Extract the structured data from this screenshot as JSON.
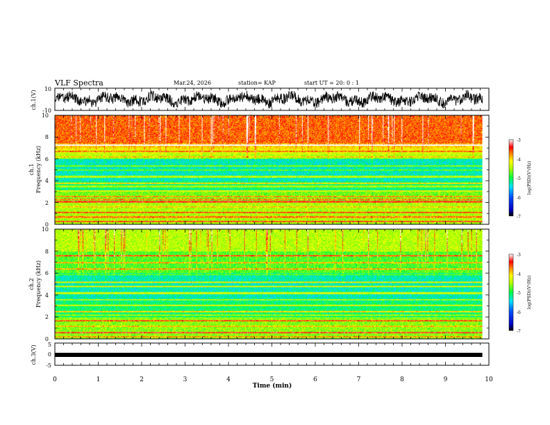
{
  "header": {
    "title": "VLF Spectra",
    "date": "Mar.24, 2026",
    "station": "station= KAP",
    "start_time": "start  UT =   20: 0  : 1"
  },
  "chart_data": [
    {
      "type": "line",
      "panel": "ch1-waveform",
      "ylabel": "ch.1(V)",
      "ylim": [
        -10,
        10
      ],
      "ytick_labels": [
        "10",
        "-10"
      ],
      "x_range_min": [
        0,
        9.85
      ]
    },
    {
      "type": "heatmap",
      "panel": "ch1-spectrogram",
      "ylabel_line1": "ch.1",
      "ylabel_line2": "Frequency (kHz)",
      "ylim": [
        0,
        10
      ],
      "ytick_labels": [
        "0",
        "2",
        "4",
        "6",
        "8",
        "10"
      ],
      "colorbar": {
        "label": "log(PSD)(V²/Hz)",
        "range": [
          -7,
          -3
        ],
        "tick_labels": [
          "-3",
          "-4",
          "-5",
          "-6",
          "-7"
        ]
      }
    },
    {
      "type": "heatmap",
      "panel": "ch2-spectrogram",
      "ylabel_line1": "ch.2",
      "ylabel_line2": "Frequency (kHz)",
      "ylim": [
        0,
        10
      ],
      "ytick_labels": [
        "0",
        "2",
        "4",
        "6",
        "8",
        "10"
      ],
      "colorbar": {
        "label": "log(PSD)(V²/Hz)",
        "range": [
          -7,
          -3
        ],
        "tick_labels": [
          "-3",
          "-4",
          "-5",
          "-6",
          "-7"
        ]
      }
    },
    {
      "type": "line",
      "panel": "ch3-signal",
      "ylabel": "ch.3(V)",
      "ylim": [
        -5,
        5
      ],
      "ytick_labels": [
        "5",
        "0",
        "-5"
      ],
      "level": -0.3
    }
  ],
  "xaxis": {
    "label": "Time  (min)",
    "range": [
      0,
      10
    ],
    "tick_labels": [
      "0",
      "1",
      "2",
      "3",
      "4",
      "5",
      "6",
      "7",
      "8",
      "9",
      "10"
    ]
  }
}
